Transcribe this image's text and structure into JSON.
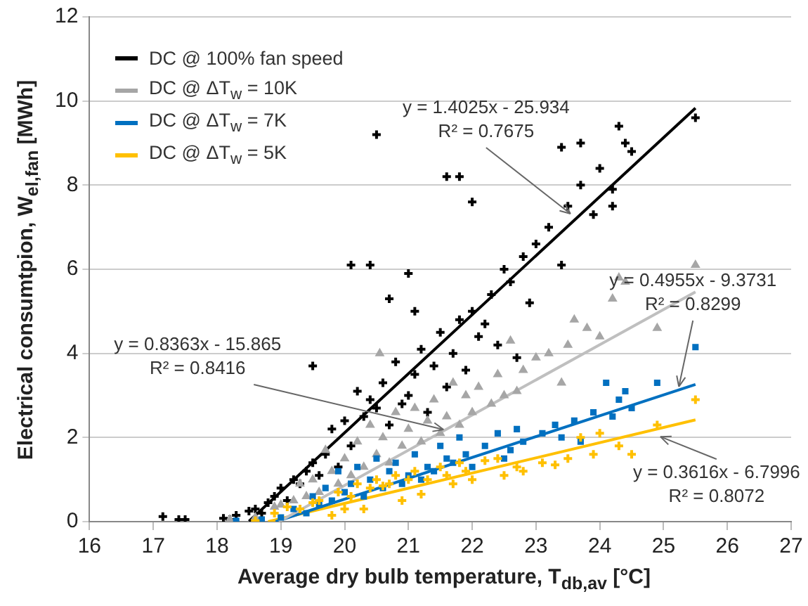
{
  "chart_data": {
    "type": "scatter",
    "xlabel": "Average dry bulb temperature, T$_{db,av}$ [°C]",
    "ylabel": "Electrical consumtpion, W$_{el,fan}$ [MWh]",
    "xlim": [
      16,
      27
    ],
    "xticks": [
      16,
      17,
      18,
      19,
      20,
      21,
      22,
      23,
      24,
      25,
      26,
      27
    ],
    "ylim": [
      0,
      12
    ],
    "yticks": [
      0,
      2,
      4,
      6,
      8,
      10,
      12
    ],
    "grid": "y",
    "legend": "top left",
    "series": [
      {
        "name": "DC @ 100% fan speed",
        "color": "#000000",
        "marker": "cross",
        "x": [
          17.15,
          17.4,
          17.5,
          18.1,
          18.2,
          18.3,
          18.5,
          18.6,
          18.7,
          18.8,
          18.9,
          19.0,
          19.1,
          19.2,
          19.3,
          19.4,
          19.5,
          19.5,
          19.6,
          19.7,
          19.8,
          19.9,
          20.0,
          20.1,
          20.1,
          20.2,
          20.3,
          20.4,
          20.4,
          20.5,
          20.5,
          20.6,
          20.7,
          20.7,
          20.8,
          20.9,
          21.0,
          21.0,
          21.1,
          21.1,
          21.2,
          21.3,
          21.4,
          21.5,
          21.6,
          21.6,
          21.7,
          21.8,
          21.8,
          21.9,
          22.0,
          22.0,
          22.1,
          22.2,
          22.3,
          22.4,
          22.5,
          22.6,
          22.7,
          22.8,
          22.9,
          23.0,
          23.2,
          23.4,
          23.4,
          23.5,
          23.7,
          23.7,
          23.9,
          24.0,
          24.2,
          24.2,
          24.3,
          24.4,
          24.5,
          25.5
        ],
        "values": [
          0.12,
          0.05,
          0.05,
          0.08,
          0.05,
          0.15,
          0.25,
          0.3,
          0.2,
          0.45,
          0.6,
          0.8,
          0.5,
          1.0,
          0.9,
          1.2,
          1.4,
          3.7,
          1.1,
          1.6,
          2.2,
          1.3,
          2.4,
          1.8,
          6.1,
          3.1,
          2.5,
          2.9,
          6.1,
          2.7,
          9.2,
          3.3,
          2.3,
          5.3,
          3.8,
          2.8,
          3.0,
          5.9,
          3.5,
          5.0,
          4.1,
          2.6,
          3.7,
          4.5,
          3.2,
          8.2,
          4.0,
          4.8,
          8.2,
          3.6,
          5.0,
          7.6,
          4.4,
          4.7,
          5.4,
          4.2,
          6.0,
          5.7,
          3.9,
          6.3,
          5.2,
          6.6,
          7.0,
          6.1,
          8.9,
          7.5,
          8.0,
          9.0,
          7.3,
          8.4,
          7.9,
          7.5,
          9.4,
          9.0,
          8.8,
          9.6
        ]
      },
      {
        "name": "DC @ ΔT$_{w}$ = 10K",
        "color": "#a6a6a6",
        "marker": "triangle",
        "x": [
          18.2,
          18.6,
          18.9,
          19.0,
          19.2,
          19.3,
          19.4,
          19.5,
          19.6,
          19.7,
          19.8,
          19.9,
          20.0,
          20.1,
          20.2,
          20.3,
          20.4,
          20.5,
          20.55,
          20.6,
          20.7,
          20.8,
          20.9,
          21.0,
          21.1,
          21.2,
          21.3,
          21.4,
          21.5,
          21.6,
          21.7,
          21.8,
          21.9,
          22.0,
          22.1,
          22.3,
          22.4,
          22.5,
          22.6,
          22.7,
          22.8,
          23.0,
          23.2,
          23.4,
          23.5,
          23.6,
          23.8,
          24.0,
          24.2,
          24.3,
          24.4,
          24.9,
          25.5
        ],
        "values": [
          0.05,
          0.1,
          0.35,
          0.4,
          0.5,
          0.9,
          0.6,
          1.0,
          0.7,
          1.7,
          1.2,
          0.9,
          1.5,
          1.1,
          1.9,
          1.3,
          2.3,
          1.6,
          4.0,
          2.0,
          1.4,
          2.6,
          1.8,
          2.2,
          2.7,
          1.9,
          2.4,
          2.9,
          2.1,
          2.5,
          3.3,
          2.3,
          3.0,
          2.6,
          3.2,
          2.8,
          3.5,
          3.0,
          4.3,
          3.1,
          3.6,
          3.9,
          4.0,
          3.3,
          4.2,
          4.8,
          4.6,
          4.4,
          5.3,
          5.8,
          5.7,
          4.6,
          6.1
        ]
      },
      {
        "name": "DC @ ΔT$_{w}$ = 7K",
        "color": "#0070c0",
        "marker": "square",
        "x": [
          18.3,
          18.7,
          19.0,
          19.2,
          19.4,
          19.5,
          19.6,
          19.7,
          19.8,
          19.9,
          20.0,
          20.1,
          20.2,
          20.3,
          20.4,
          20.5,
          20.6,
          20.7,
          20.8,
          20.9,
          21.0,
          21.1,
          21.2,
          21.3,
          21.4,
          21.5,
          21.6,
          21.7,
          21.8,
          21.9,
          22.0,
          22.2,
          22.4,
          22.5,
          22.6,
          22.7,
          22.8,
          23.1,
          23.3,
          23.4,
          23.6,
          23.7,
          23.9,
          24.1,
          24.2,
          24.3,
          24.4,
          24.5,
          24.9,
          25.5
        ],
        "values": [
          0.02,
          0.05,
          0.1,
          0.3,
          0.2,
          0.6,
          0.4,
          0.8,
          0.5,
          1.2,
          0.7,
          0.9,
          1.3,
          0.6,
          1.0,
          1.5,
          0.8,
          1.2,
          1.4,
          0.9,
          1.1,
          1.6,
          1.0,
          1.3,
          1.2,
          1.8,
          1.5,
          1.4,
          2.0,
          1.6,
          1.3,
          1.8,
          2.1,
          1.5,
          1.7,
          2.2,
          1.9,
          2.1,
          2.3,
          2.0,
          2.4,
          1.9,
          2.6,
          3.3,
          2.5,
          2.9,
          3.1,
          2.7,
          3.3,
          4.15
        ]
      },
      {
        "name": "DC @ ΔT$_{w}$ = 5K",
        "color": "#ffc000",
        "marker": "cross",
        "x": [
          18.6,
          18.9,
          19.1,
          19.3,
          19.5,
          19.6,
          19.8,
          19.9,
          20.0,
          20.1,
          20.2,
          20.3,
          20.4,
          20.5,
          20.6,
          20.7,
          20.8,
          20.9,
          21.0,
          21.1,
          21.2,
          21.3,
          21.5,
          21.6,
          21.7,
          21.8,
          21.9,
          22.0,
          22.2,
          22.4,
          22.5,
          22.7,
          22.8,
          23.1,
          23.3,
          23.5,
          23.7,
          23.9,
          24.0,
          24.3,
          24.5,
          24.9,
          25.5
        ],
        "values": [
          0.02,
          0.2,
          0.35,
          0.3,
          0.45,
          0.5,
          0.15,
          0.7,
          0.3,
          0.6,
          0.9,
          0.3,
          0.8,
          1.0,
          0.85,
          0.9,
          1.1,
          0.5,
          1.0,
          1.2,
          0.65,
          1.0,
          1.3,
          1.1,
          0.9,
          1.4,
          1.2,
          1.0,
          1.45,
          1.5,
          1.1,
          1.3,
          1.2,
          1.4,
          1.35,
          1.5,
          2.0,
          1.6,
          2.1,
          1.8,
          1.6,
          2.3,
          2.9
        ]
      },
      {
        "type": "line",
        "color": "#000000",
        "marker": "none",
        "line_style": "solid",
        "x": [
          18.5,
          25.5
        ],
        "values": [
          0.01,
          9.83
        ]
      },
      {
        "type": "line",
        "color": "#bfbfbf",
        "marker": "none",
        "line_style": "solid",
        "x": [
          18.97,
          25.5
        ],
        "values": [
          0,
          5.46
        ]
      },
      {
        "type": "line",
        "color": "#0070c0",
        "marker": "none",
        "line_style": "solid",
        "x": [
          18.92,
          25.5
        ],
        "values": [
          0,
          3.26
        ]
      },
      {
        "type": "line",
        "color": "#ffc000",
        "marker": "none",
        "line_style": "solid",
        "x": [
          18.8,
          25.5
        ],
        "values": [
          0,
          2.42
        ]
      }
    ],
    "annotations": [
      {
        "text": "y = 1.4025x - 25.934\nR² = 0.7675",
        "x": 23.54,
        "y": 7.32
      },
      {
        "text": "y = 0.8363x - 15.865\nR² = 0.8416",
        "x": 21.55,
        "y": 2.19
      },
      {
        "text": "y = 0.4955x - 9.3731\nR² = 0.8299",
        "x": 25.24,
        "y": 3.21
      },
      {
        "text": "y = 0.3616x - 6.7996\nR² = 0.8072",
        "x": 24.95,
        "y": 2.02
      }
    ]
  }
}
